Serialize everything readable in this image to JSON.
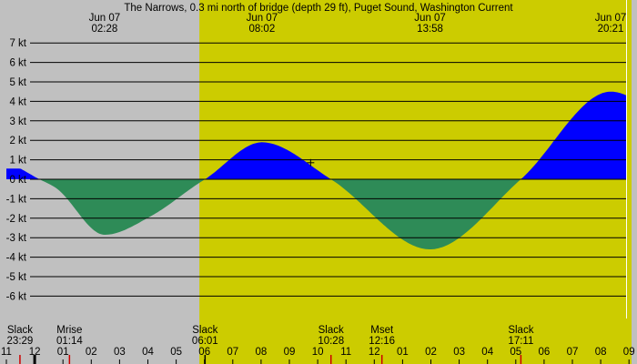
{
  "chart_data": {
    "type": "area",
    "title": "The Narrows, 0.3 mi north of bridge (depth 29 ft), Puget Sound, Washington Current",
    "y_axis": {
      "unit": "kt",
      "ylim": [
        -7,
        7
      ],
      "ticks": [
        7,
        6,
        5,
        4,
        3,
        2,
        1,
        0,
        -1,
        -2,
        -3,
        -4,
        -5,
        -6
      ],
      "tick_labels": [
        "7 kt",
        "6 kt",
        "5 kt",
        "4 kt",
        "3 kt",
        "2 kt",
        "1 kt",
        "0 kt",
        "-1 kt",
        "-2 kt",
        "-3 kt",
        "-4 kt",
        "-5 kt",
        "-6 kt"
      ]
    },
    "x_axis": {
      "xlim_hours": [
        -1,
        33.38
      ],
      "tick_hours": [
        -1,
        0,
        1,
        2,
        3,
        4,
        5,
        6,
        7,
        8,
        9,
        10,
        11,
        12,
        13,
        14,
        15,
        16,
        17,
        18,
        19,
        20,
        21,
        22,
        23,
        24,
        25,
        26,
        27,
        28,
        29,
        30,
        31,
        32,
        33
      ],
      "tick_labels": [
        "11",
        "12",
        "01",
        "02",
        "03",
        "04",
        "05",
        "06",
        "07",
        "08",
        "09",
        "10",
        "11",
        "12",
        "01",
        "02",
        "03",
        "04",
        "05",
        "06",
        "07",
        "08",
        "09",
        "10",
        "11",
        "12",
        "01",
        "02",
        "03",
        "04",
        "05",
        "06",
        "07",
        "08",
        "09"
      ]
    },
    "shading": {
      "night_color": "#c0c0c0",
      "day_color": "#cccc00",
      "day_start_hour": 5.82,
      "day_end_hour": 21.09
    },
    "series": [
      {
        "points_hours": [
          -0.5,
          0.1,
          0.8,
          2.47,
          4.1,
          5.8,
          6.02,
          8.03,
          10.47,
          13.97,
          17.18,
          20.35,
          22.4
        ],
        "points_kt": [
          0.55,
          0.05,
          -0.5,
          -2.85,
          -1.9,
          -0.2,
          0.0,
          1.9,
          0.0,
          -3.6,
          0.0,
          4.5,
          3.0
        ]
      }
    ],
    "colors": {
      "flood": "#0000ff",
      "ebb": "#2e8b57",
      "gridline": "#000000",
      "marker": "#000000"
    },
    "peaks": [
      {
        "date": "Jun 07",
        "time": "02:28",
        "hour": 2.47
      },
      {
        "date": "Jun 07",
        "time": "08:02",
        "hour": 8.03
      },
      {
        "date": "Jun 07",
        "time": "13:58",
        "hour": 13.97
      },
      {
        "date": "Jun 07",
        "time": "20:21",
        "hour": 20.35
      }
    ],
    "events": [
      {
        "label": "Slack",
        "time": "23:29",
        "hour": -0.52
      },
      {
        "label": "Mrise",
        "time": "01:14",
        "hour": 1.23
      },
      {
        "label": "Slack",
        "time": "06:01",
        "hour": 6.02
      },
      {
        "label": "Slack",
        "time": "10:28",
        "hour": 10.47
      },
      {
        "label": "Mset",
        "time": "12:16",
        "hour": 12.27
      },
      {
        "label": "Slack",
        "time": "17:11",
        "hour": 17.18
      }
    ],
    "markers": [
      {
        "type": "moon",
        "hour": 1.23,
        "color": "#cc0000"
      },
      {
        "type": "moon",
        "hour": 12.27,
        "color": "#cc0000"
      },
      {
        "type": "slack",
        "hour": -0.52,
        "color": "#cc0000"
      },
      {
        "type": "slack",
        "hour": 10.47,
        "color": "#cc0000"
      },
      {
        "type": "slack",
        "hour": 17.18,
        "color": "#cc0000"
      },
      {
        "type": "slack",
        "hour": 6.02,
        "color": "#000000"
      },
      {
        "type": "midnight",
        "hour": 0,
        "color": "#000000"
      }
    ],
    "now_marker_hour": 9.75,
    "now_marker_kt": 0.85
  }
}
